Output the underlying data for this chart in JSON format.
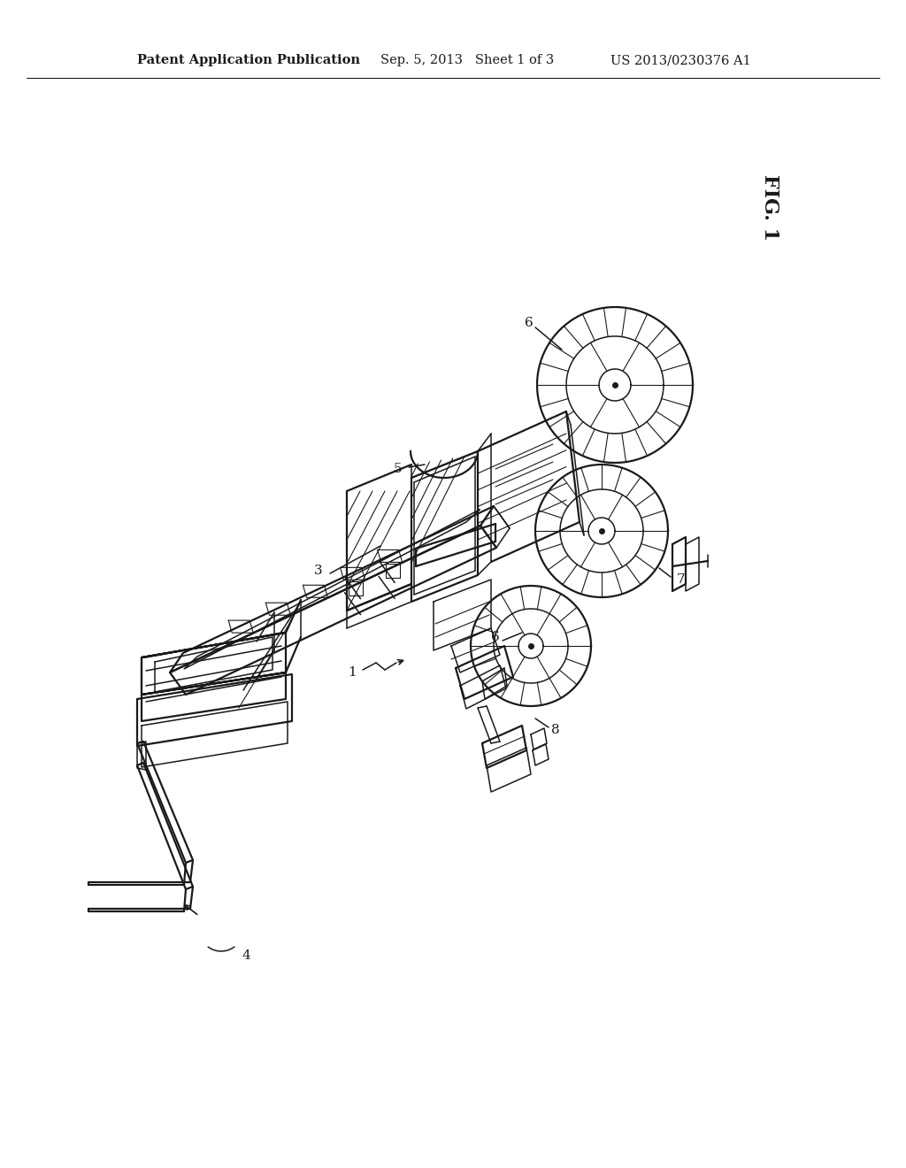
{
  "background_color": "#ffffff",
  "header_text_left": "Patent Application Publication",
  "header_text_mid": "Sep. 5, 2013   Sheet 1 of 3",
  "header_text_right": "US 2013/0230376 A1",
  "fig_label": "FIG. 1",
  "line_color": "#1a1a1a",
  "label_font_size": 11,
  "header_font_size": 10.5
}
